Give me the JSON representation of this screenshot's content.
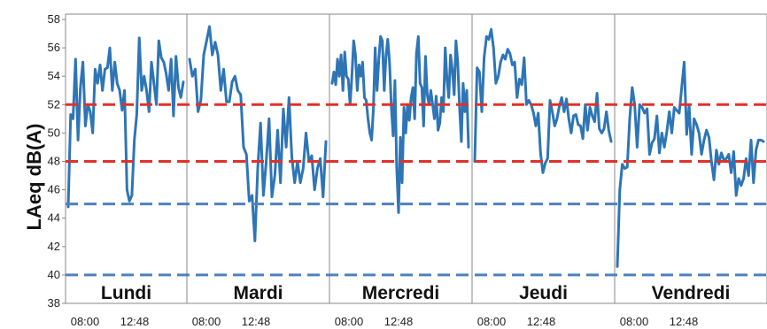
{
  "chart_data": {
    "type": "line",
    "title": "",
    "ylabel": "LAeq dB(A)",
    "xlabel": "",
    "ylim": [
      38,
      58
    ],
    "yticks": [
      38,
      40,
      42,
      44,
      46,
      48,
      50,
      52,
      54,
      56,
      58
    ],
    "grid": false,
    "legend": "none",
    "line_color": "#2e75b6",
    "panels": [
      {
        "label": "Lundi",
        "x_ticks": [
          "08:00",
          "12:48"
        ],
        "values": [
          44.8,
          51.3,
          51,
          55.2,
          49.5,
          53.2,
          55,
          50.5,
          52,
          51.5,
          50,
          54.5,
          53.5,
          54.8,
          53,
          54.5,
          54.6,
          56,
          53,
          55,
          53.5,
          53,
          51.6,
          53,
          46,
          45.2,
          45.6,
          49.5,
          51.3,
          56.7,
          53,
          54,
          53,
          51.5,
          55,
          53.5,
          52,
          56.5,
          55.3,
          55,
          54.2,
          53,
          55.2,
          51.2,
          55.4,
          53.2,
          52.5,
          53.6
        ]
      },
      {
        "label": "Mardi",
        "x_ticks": [
          "08:00",
          "12:48"
        ],
        "values": [
          55.2,
          54,
          54.5,
          51.5,
          52.3,
          55.5,
          56.5,
          57.5,
          55.5,
          56.4,
          55.5,
          53,
          54.5,
          52.2,
          52.2,
          53.6,
          54,
          53,
          52.7,
          49,
          48.5,
          45.2,
          45.6,
          42.4,
          47.5,
          50.7,
          45.6,
          48,
          51,
          45.5,
          47,
          50.2,
          46.5,
          51.7,
          49,
          52.5,
          48.3,
          46.5,
          48,
          46.5,
          47.5,
          50,
          48,
          48.4,
          46,
          47.5,
          48.2,
          45.5,
          49.4
        ]
      },
      {
        "label": "Mercredi",
        "x_ticks": [
          "08:00",
          "12:48"
        ],
        "values": [
          53.5,
          54.3,
          53.4,
          55.2,
          54,
          55.5,
          53,
          55.7,
          54,
          53.8,
          52,
          54,
          56.5,
          55.5,
          53,
          54.8,
          54,
          55,
          52.5,
          52.3,
          51,
          50,
          49.5,
          51.7,
          56,
          53,
          55.2,
          56.8,
          56.5,
          53,
          55.4,
          56.6,
          55,
          51.8,
          49.8,
          53.7,
          47.6,
          44.4,
          49.7,
          46.5,
          51.8,
          50,
          52,
          50.9,
          52.5,
          53.2,
          51,
          55.6,
          56.8,
          53.5,
          53.2,
          50.5,
          55.4,
          52.7,
          52,
          53,
          52,
          51,
          52.6,
          50.2,
          50.7,
          52.5,
          51.5,
          56,
          53.8,
          52.5,
          55.5,
          54.4,
          52.7,
          56.5,
          55,
          51.8,
          49.4,
          53.5,
          51.5,
          53,
          49
        ]
      },
      {
        "label": "Jeudi",
        "x_ticks": [
          "08:00",
          "12:48"
        ],
        "values": [
          48,
          54.6,
          54.3,
          51.5,
          55.3,
          56.8,
          56.6,
          57.3,
          56,
          53.5,
          54,
          55,
          55.5,
          55.2,
          55.9,
          55.6,
          54.8,
          55,
          52.5,
          53.8,
          53.4,
          55.3,
          52,
          52.3,
          52,
          51.4,
          50.5,
          51.4,
          48.6,
          47.2,
          47.9,
          48.2,
          52.3,
          51.5,
          50.5,
          51,
          51.9,
          52.5,
          51.5,
          52.4,
          51,
          50,
          51.2,
          51.3,
          50.6,
          50.5,
          49.6,
          52,
          50.2,
          51.8,
          51.2,
          50.8,
          52.8,
          50.3,
          50,
          50.3,
          51.5,
          50.2,
          49.4
        ]
      },
      {
        "label": "Vendredi",
        "x_ticks": [
          "08:00",
          "12:48"
        ],
        "values": [
          40.6,
          46,
          47.8,
          47.5,
          47.6,
          51,
          53.2,
          52,
          49,
          52,
          51.8,
          51.4,
          51.7,
          48.5,
          49.3,
          49.6,
          51.2,
          48.6,
          50,
          49,
          50.1,
          51.5,
          50,
          51.8,
          51.6,
          51.4,
          53.2,
          55,
          49.9,
          51.9,
          48.5,
          51,
          50.6,
          50,
          48.5,
          49.5,
          50.2,
          49.7,
          48,
          46.7,
          48.8,
          47.8,
          48.6,
          48.1,
          48.2,
          48.5,
          47.2,
          48.7,
          45.6,
          46.8,
          46.3,
          46.8,
          48.2,
          47,
          49.5,
          46.5,
          48.8,
          49.5,
          49.5,
          49.4
        ]
      }
    ],
    "reference_lines": [
      {
        "y": 52,
        "color": "#e1302a",
        "style": "dashed"
      },
      {
        "y": 48,
        "color": "#e1302a",
        "style": "dashed"
      },
      {
        "y": 45,
        "color": "#4f81bd",
        "style": "dashed"
      },
      {
        "y": 40,
        "color": "#4f81bd",
        "style": "dashed"
      }
    ]
  }
}
